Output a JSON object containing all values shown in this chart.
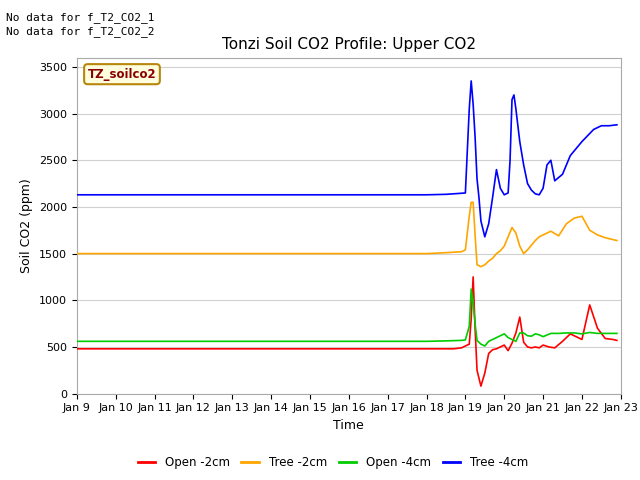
{
  "title": "Tonzi Soil CO2 Profile: Upper CO2",
  "ylabel": "Soil CO2 (ppm)",
  "xlabel": "Time",
  "no_data_text": [
    "No data for f_T2_CO2_1",
    "No data for f_T2_CO2_2"
  ],
  "legend_label": "TZ_soilco2",
  "ylim": [
    0,
    3600
  ],
  "yticks": [
    0,
    500,
    1000,
    1500,
    2000,
    2500,
    3000,
    3500
  ],
  "date_start": 9,
  "date_end": 23,
  "xtick_labels": [
    "Jan 9",
    "Jan 10",
    "Jan 11",
    "Jan 12",
    "Jan 13",
    "Jan 14",
    "Jan 15",
    "Jan 16",
    "Jan 17",
    "Jan 18",
    "Jan 19",
    "Jan 20",
    "Jan 21",
    "Jan 22",
    "Jan 23"
  ],
  "colors": {
    "open_2cm": "#ff0000",
    "tree_2cm": "#ffa500",
    "open_4cm": "#00cc00",
    "tree_4cm": "#0000ff"
  },
  "legend_entries": [
    "Open -2cm",
    "Tree -2cm",
    "Open -4cm",
    "Tree -4cm"
  ],
  "plot_bg_color": "#ffffff",
  "fig_bg_color": "#ffffff",
  "grid_color": "#d0d0d0",
  "open_2cm": {
    "x": [
      9.0,
      9.1,
      9.3,
      9.5,
      9.7,
      10.0,
      10.3,
      10.5,
      10.7,
      11.0,
      11.3,
      11.5,
      11.7,
      12.0,
      12.3,
      12.5,
      12.7,
      13.0,
      13.3,
      13.5,
      13.7,
      14.0,
      14.3,
      14.5,
      14.7,
      15.0,
      15.3,
      15.5,
      15.7,
      16.0,
      16.3,
      16.5,
      16.7,
      17.0,
      17.3,
      17.5,
      17.7,
      18.0,
      18.3,
      18.5,
      18.7,
      18.9,
      19.0,
      19.1,
      19.15,
      19.2,
      19.25,
      19.3,
      19.4,
      19.5,
      19.6,
      19.7,
      19.8,
      19.9,
      20.0,
      20.1,
      20.2,
      20.3,
      20.4,
      20.5,
      20.6,
      20.7,
      20.8,
      20.9,
      21.0,
      21.15,
      21.3,
      21.5,
      21.7,
      21.9,
      22.0,
      22.2,
      22.4,
      22.6,
      22.8,
      22.9
    ],
    "y": [
      480,
      480,
      480,
      480,
      480,
      480,
      480,
      480,
      480,
      480,
      480,
      480,
      480,
      480,
      480,
      480,
      480,
      480,
      480,
      480,
      480,
      480,
      480,
      480,
      480,
      480,
      480,
      480,
      480,
      480,
      480,
      480,
      480,
      480,
      480,
      480,
      480,
      480,
      480,
      480,
      480,
      490,
      510,
      530,
      800,
      1250,
      700,
      250,
      80,
      220,
      430,
      470,
      480,
      500,
      520,
      460,
      540,
      650,
      820,
      550,
      500,
      490,
      500,
      490,
      520,
      500,
      490,
      560,
      640,
      600,
      580,
      950,
      700,
      590,
      580,
      570
    ]
  },
  "tree_2cm": {
    "x": [
      9.0,
      9.5,
      10.0,
      10.5,
      11.0,
      11.5,
      12.0,
      12.5,
      13.0,
      13.5,
      14.0,
      14.5,
      15.0,
      15.5,
      16.0,
      16.5,
      17.0,
      17.5,
      18.0,
      18.5,
      18.9,
      19.0,
      19.1,
      19.15,
      19.2,
      19.25,
      19.3,
      19.4,
      19.5,
      19.6,
      19.7,
      19.8,
      19.9,
      20.0,
      20.1,
      20.2,
      20.3,
      20.4,
      20.5,
      20.6,
      20.7,
      20.8,
      20.9,
      21.0,
      21.2,
      21.4,
      21.6,
      21.8,
      22.0,
      22.2,
      22.4,
      22.6,
      22.8,
      22.9
    ],
    "y": [
      1500,
      1500,
      1500,
      1500,
      1500,
      1500,
      1500,
      1500,
      1500,
      1500,
      1500,
      1500,
      1500,
      1500,
      1500,
      1500,
      1500,
      1500,
      1500,
      1510,
      1520,
      1540,
      1900,
      2050,
      2050,
      1700,
      1380,
      1360,
      1380,
      1420,
      1450,
      1500,
      1530,
      1580,
      1680,
      1780,
      1720,
      1580,
      1500,
      1540,
      1590,
      1640,
      1680,
      1700,
      1740,
      1690,
      1820,
      1880,
      1900,
      1750,
      1700,
      1670,
      1650,
      1640
    ]
  },
  "open_4cm": {
    "x": [
      9.0,
      9.5,
      10.0,
      10.5,
      11.0,
      11.5,
      12.0,
      12.5,
      13.0,
      13.5,
      14.0,
      14.5,
      15.0,
      15.5,
      16.0,
      16.5,
      17.0,
      17.5,
      18.0,
      18.5,
      18.9,
      19.0,
      19.1,
      19.15,
      19.2,
      19.25,
      19.3,
      19.4,
      19.5,
      19.6,
      19.7,
      19.8,
      19.9,
      20.0,
      20.1,
      20.2,
      20.3,
      20.4,
      20.5,
      20.6,
      20.7,
      20.8,
      20.9,
      21.0,
      21.2,
      21.4,
      21.6,
      21.8,
      22.0,
      22.2,
      22.4,
      22.6,
      22.8,
      22.9
    ],
    "y": [
      560,
      560,
      560,
      560,
      560,
      560,
      560,
      560,
      560,
      560,
      560,
      560,
      560,
      560,
      560,
      560,
      560,
      560,
      560,
      565,
      570,
      575,
      720,
      1120,
      980,
      750,
      570,
      530,
      510,
      560,
      580,
      600,
      620,
      640,
      600,
      580,
      560,
      650,
      650,
      620,
      615,
      640,
      630,
      610,
      645,
      645,
      650,
      650,
      640,
      655,
      645,
      645,
      645,
      645
    ]
  },
  "tree_4cm": {
    "x": [
      9.0,
      9.5,
      10.0,
      10.5,
      11.0,
      11.5,
      12.0,
      12.5,
      13.0,
      13.5,
      14.0,
      14.5,
      15.0,
      15.5,
      16.0,
      16.5,
      17.0,
      17.5,
      18.0,
      18.5,
      18.85,
      19.0,
      19.05,
      19.1,
      19.15,
      19.2,
      19.25,
      19.3,
      19.35,
      19.4,
      19.5,
      19.6,
      19.7,
      19.8,
      19.9,
      20.0,
      20.1,
      20.15,
      20.2,
      20.25,
      20.3,
      20.4,
      20.5,
      20.6,
      20.7,
      20.8,
      20.9,
      21.0,
      21.1,
      21.2,
      21.3,
      21.5,
      21.7,
      22.0,
      22.3,
      22.5,
      22.7,
      22.9
    ],
    "y": [
      2130,
      2130,
      2130,
      2130,
      2130,
      2130,
      2130,
      2130,
      2130,
      2130,
      2130,
      2130,
      2130,
      2130,
      2130,
      2130,
      2130,
      2130,
      2130,
      2135,
      2145,
      2150,
      2600,
      3050,
      3350,
      3100,
      2750,
      2300,
      2100,
      1850,
      1680,
      1820,
      2100,
      2400,
      2200,
      2130,
      2150,
      2500,
      3150,
      3200,
      3050,
      2700,
      2450,
      2250,
      2180,
      2140,
      2130,
      2200,
      2450,
      2500,
      2280,
      2350,
      2550,
      2700,
      2830,
      2870,
      2870,
      2880
    ]
  }
}
